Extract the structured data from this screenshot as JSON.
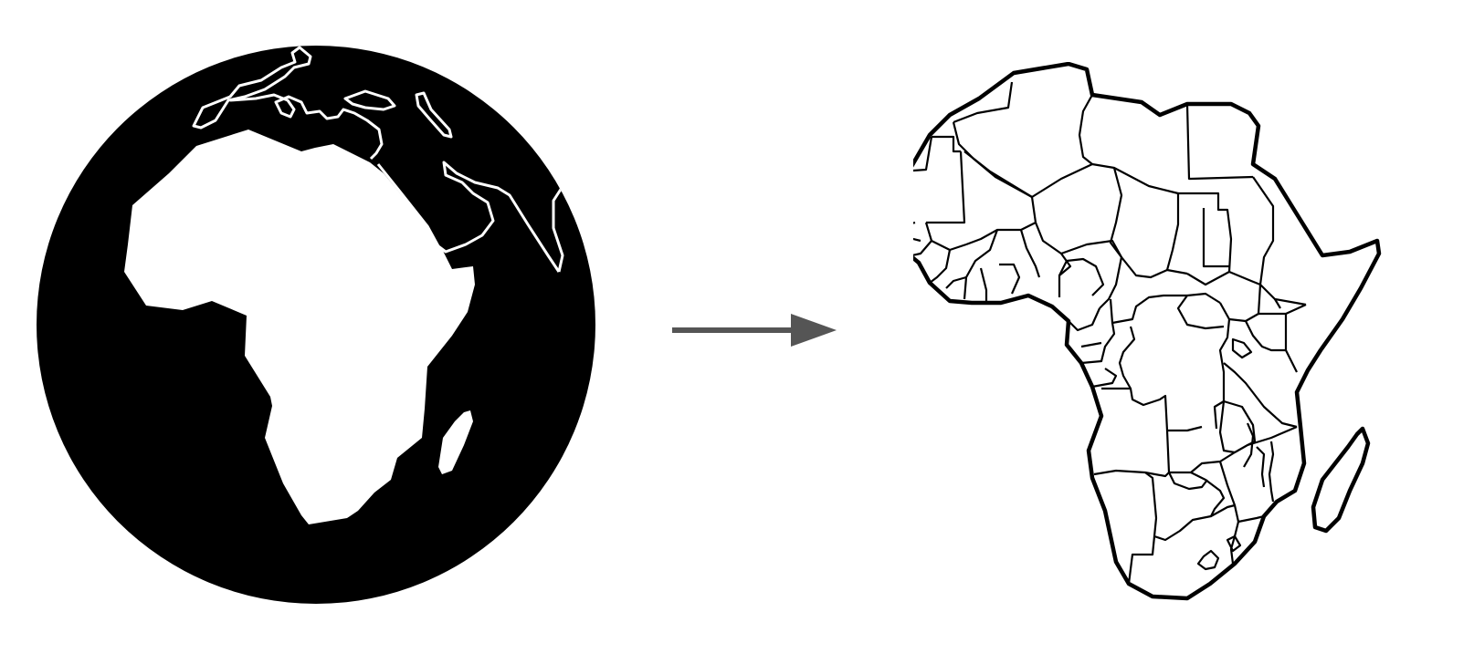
{
  "diagram": {
    "colors": {
      "background": "#ffffff",
      "globe_fill": "#000000",
      "land_fill": "#ffffff",
      "land_outline": "#ffffff",
      "arrow": "#555555",
      "map_outline": "#000000",
      "map_fill": "#ffffff"
    },
    "elements": [
      {
        "id": "globe",
        "icon": "globe-africa-icon"
      },
      {
        "id": "arrow",
        "icon": "arrow-right-icon"
      },
      {
        "id": "map",
        "icon": "africa-political-map-icon"
      }
    ]
  }
}
